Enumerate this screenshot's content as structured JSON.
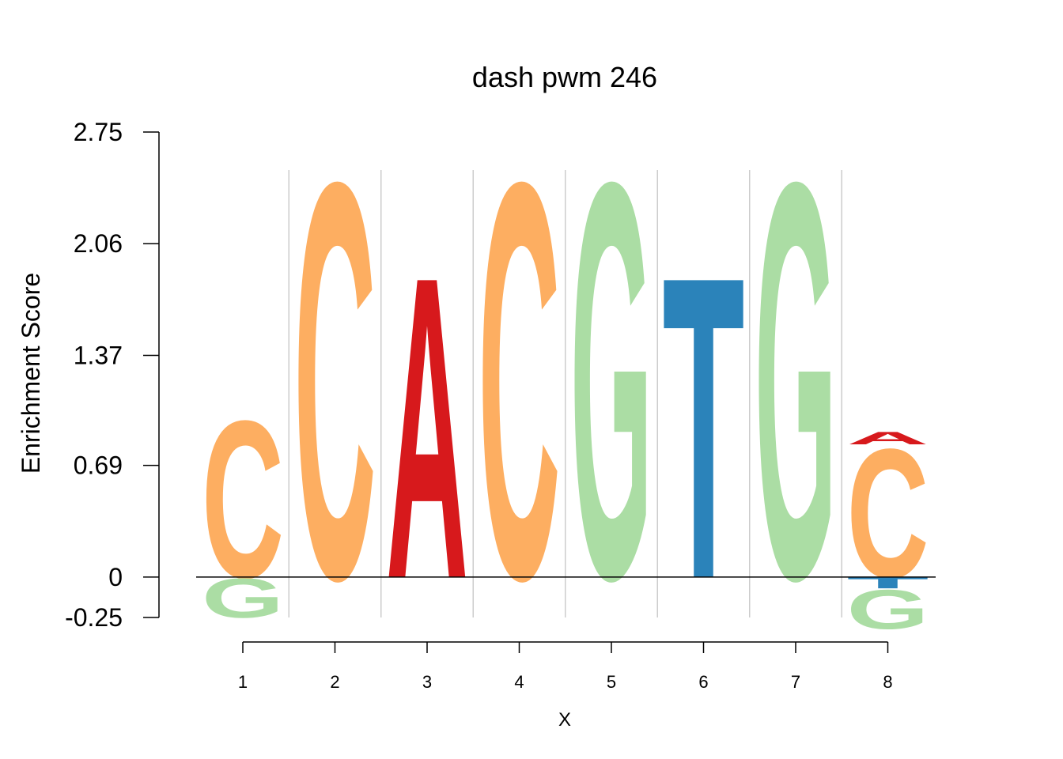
{
  "chart_data": {
    "type": "sequence-logo",
    "title": "dash pwm 246",
    "xlabel": "X",
    "ylabel": "Enrichment Score",
    "ylim": [
      -0.25,
      2.75
    ],
    "yticks": [
      "2.75",
      "2.06",
      "1.37",
      "0.69",
      "0",
      "-0.25"
    ],
    "ytick_values": [
      2.75,
      2.06,
      1.37,
      0.69,
      0,
      -0.25
    ],
    "positions": [
      1,
      2,
      3,
      4,
      5,
      6,
      7,
      8
    ],
    "xticks": [
      "1",
      "2",
      "3",
      "4",
      "5",
      "6",
      "7",
      "8"
    ],
    "colors": {
      "A": "#d7191c",
      "C": "#fdae61",
      "G": "#abdda4",
      "T": "#2b83ba"
    },
    "letters": [
      {
        "pos": 1,
        "stack": [
          {
            "base": "C",
            "score": 1.0
          },
          {
            "base": "G",
            "score": -0.25
          }
        ]
      },
      {
        "pos": 2,
        "stack": [
          {
            "base": "C",
            "score": 2.52
          }
        ]
      },
      {
        "pos": 3,
        "stack": [
          {
            "base": "A",
            "score": 1.92
          }
        ]
      },
      {
        "pos": 4,
        "stack": [
          {
            "base": "C",
            "score": 2.52
          }
        ]
      },
      {
        "pos": 5,
        "stack": [
          {
            "base": "G",
            "score": 2.52
          }
        ]
      },
      {
        "pos": 6,
        "stack": [
          {
            "base": "T",
            "score": 1.92
          }
        ]
      },
      {
        "pos": 7,
        "stack": [
          {
            "base": "G",
            "score": 2.52
          }
        ]
      },
      {
        "pos": 8,
        "stack": [
          {
            "base": "C",
            "score": 0.82
          },
          {
            "base": "A",
            "score": 0.08
          },
          {
            "base": "T",
            "score": -0.07
          },
          {
            "base": "G",
            "score": -0.25
          }
        ]
      }
    ]
  }
}
